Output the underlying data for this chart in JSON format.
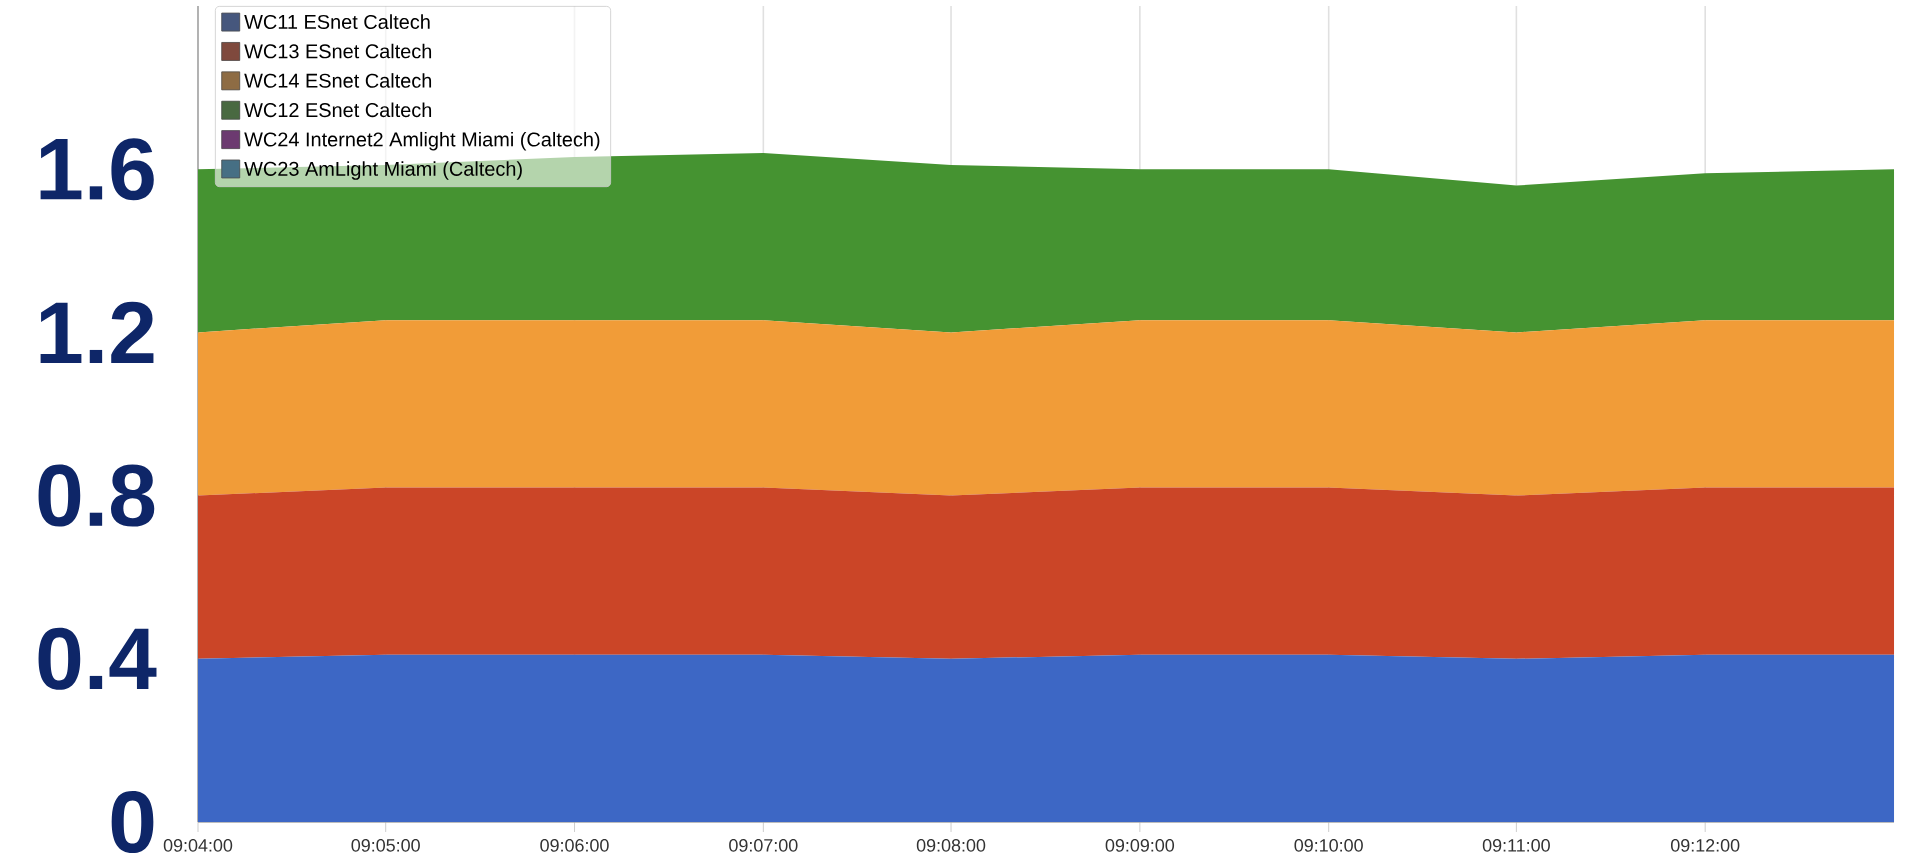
{
  "chart_data": {
    "type": "area",
    "stacked": true,
    "x": [
      9.0667,
      9.0833,
      9.1,
      9.1167,
      9.1333,
      9.15,
      9.1667,
      9.1833,
      9.2,
      9.2167
    ],
    "series": [
      {
        "name": "WC11 ESnet Caltech",
        "color": "#3d67c5",
        "values": [
          0.4,
          0.41,
          0.41,
          0.41,
          0.4,
          0.41,
          0.41,
          0.4,
          0.41,
          0.41
        ]
      },
      {
        "name": "WC13 ESnet Caltech",
        "color": "#cb4527",
        "values": [
          0.4,
          0.41,
          0.41,
          0.41,
          0.4,
          0.41,
          0.41,
          0.4,
          0.41,
          0.41
        ]
      },
      {
        "name": "WC14 ESnet Caltech",
        "color": "#f19c38",
        "values": [
          0.4,
          0.41,
          0.41,
          0.41,
          0.4,
          0.41,
          0.41,
          0.4,
          0.41,
          0.41
        ]
      },
      {
        "name": "WC12 ESnet Caltech",
        "color": "#459331",
        "values": [
          0.4,
          0.38,
          0.4,
          0.41,
          0.41,
          0.37,
          0.37,
          0.36,
          0.36,
          0.37
        ]
      },
      {
        "name": "WC24 Internet2 Amlight Miami (Caltech)",
        "color": "#9c1fa6",
        "values": [
          null,
          null,
          null,
          null,
          null,
          null,
          null,
          null,
          null,
          null
        ]
      },
      {
        "name": "WC23 AmLight Miami (Caltech)",
        "color": "#3ea3d6",
        "values": [
          null,
          null,
          null,
          null,
          null,
          null,
          null,
          null,
          null,
          null
        ]
      }
    ],
    "xlim": [
      9.0667,
      9.2167
    ],
    "xticks": [
      {
        "value": 9.0667,
        "label": "09:04:00"
      },
      {
        "value": 9.0833,
        "label": "09:05:00"
      },
      {
        "value": 9.1,
        "label": "09:06:00"
      },
      {
        "value": 9.1167,
        "label": "09:07:00"
      },
      {
        "value": 9.1333,
        "label": "09:08:00"
      },
      {
        "value": 9.15,
        "label": "09:09:00"
      },
      {
        "value": 9.1667,
        "label": "09:10:00"
      },
      {
        "value": 9.1833,
        "label": "09:11:00"
      },
      {
        "value": 9.2,
        "label": "09:12:00"
      }
    ],
    "ylim": [
      0,
      2
    ],
    "yticks": [
      0,
      0.4,
      0.8,
      1.2,
      1.6
    ],
    "grid": "x",
    "legend": "top left"
  }
}
